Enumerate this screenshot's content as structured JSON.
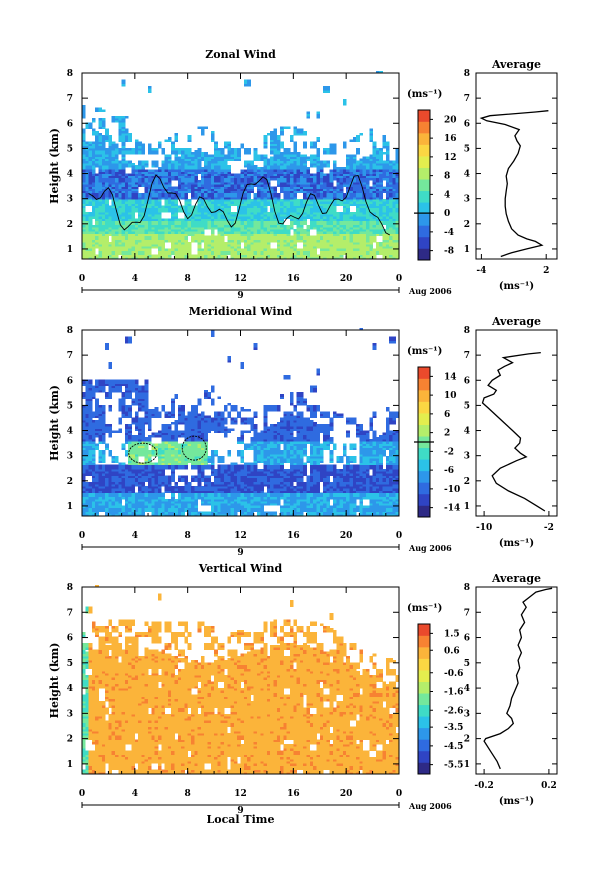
{
  "chart_data": [
    {
      "type": "heatmap",
      "title": "Zonal Wind",
      "ylabel": "Height (km)",
      "xlabel": "",
      "x_ticks": [
        "0",
        "4",
        "8",
        "12",
        "16",
        "20",
        "0"
      ],
      "y_ticks": [
        "1",
        "2",
        "3",
        "4",
        "5",
        "6",
        "7",
        "8"
      ],
      "xlim": [
        0,
        24
      ],
      "ylim": [
        0.6,
        8
      ],
      "day_label": "9",
      "date_label": "Aug 2006",
      "colorbar": {
        "unit": "(ms⁻¹)",
        "labels": [
          "20",
          "16",
          "12",
          "8",
          "4",
          "0",
          "-4",
          "-8"
        ],
        "range": [
          -10,
          22
        ],
        "marker": 0
      },
      "average": {
        "title": "Average",
        "xlabel": "(ms⁻¹)",
        "x_ticks": [
          "-4",
          "2"
        ],
        "xlim": [
          -4.5,
          3
        ],
        "profile": [
          [
            -2.2,
            0.7
          ],
          [
            -1.2,
            0.85
          ],
          [
            0.2,
            1.0
          ],
          [
            1.6,
            1.15
          ],
          [
            1.0,
            1.3
          ],
          [
            0.2,
            1.4
          ],
          [
            -0.6,
            1.55
          ],
          [
            -1.2,
            1.8
          ],
          [
            -1.5,
            2.1
          ],
          [
            -1.7,
            2.4
          ],
          [
            -1.8,
            2.7
          ],
          [
            -1.8,
            3.0
          ],
          [
            -1.7,
            3.3
          ],
          [
            -1.6,
            3.6
          ],
          [
            -1.7,
            3.9
          ],
          [
            -1.5,
            4.2
          ],
          [
            -1.0,
            4.5
          ],
          [
            -0.6,
            4.8
          ],
          [
            -0.4,
            5.1
          ],
          [
            -0.7,
            5.3
          ],
          [
            -0.9,
            5.5
          ],
          [
            -0.5,
            5.75
          ],
          [
            -1.8,
            5.95
          ],
          [
            -3.5,
            6.1
          ],
          [
            -4.0,
            6.2
          ],
          [
            -3.2,
            6.3
          ],
          [
            1.0,
            6.45
          ],
          [
            2.2,
            6.5
          ]
        ]
      }
    },
    {
      "type": "heatmap",
      "title": "Meridional Wind",
      "ylabel": "Height (km)",
      "xlabel": "",
      "x_ticks": [
        "0",
        "4",
        "8",
        "12",
        "16",
        "20",
        "0"
      ],
      "y_ticks": [
        "1",
        "2",
        "3",
        "4",
        "5",
        "6",
        "7",
        "8"
      ],
      "xlim": [
        0,
        24
      ],
      "ylim": [
        0.6,
        8
      ],
      "day_label": "9",
      "date_label": "Aug 2006",
      "colorbar": {
        "unit": "(ms⁻¹)",
        "labels": [
          "14",
          "10",
          "6",
          "2",
          "-2",
          "-6",
          "-10",
          "-14"
        ],
        "range": [
          -16,
          16
        ],
        "marker": 0
      },
      "average": {
        "title": "Average",
        "xlabel": "(ms⁻¹)",
        "x_ticks": [
          "-10",
          "-2"
        ],
        "xlim": [
          -11,
          -1
        ],
        "profile": [
          [
            -2.5,
            0.8
          ],
          [
            -3.5,
            1.0
          ],
          [
            -5.0,
            1.3
          ],
          [
            -7.0,
            1.6
          ],
          [
            -8.5,
            1.9
          ],
          [
            -9.0,
            2.2
          ],
          [
            -8.0,
            2.5
          ],
          [
            -6.0,
            2.8
          ],
          [
            -4.8,
            2.95
          ],
          [
            -5.5,
            3.1
          ],
          [
            -6.2,
            3.3
          ],
          [
            -5.6,
            3.5
          ],
          [
            -5.5,
            3.7
          ],
          [
            -6.5,
            4.0
          ],
          [
            -7.5,
            4.3
          ],
          [
            -8.5,
            4.6
          ],
          [
            -9.5,
            4.9
          ],
          [
            -10.2,
            5.1
          ],
          [
            -10.0,
            5.3
          ],
          [
            -8.8,
            5.45
          ],
          [
            -8.5,
            5.6
          ],
          [
            -9.5,
            5.8
          ],
          [
            -9.0,
            6.0
          ],
          [
            -8.0,
            6.2
          ],
          [
            -8.3,
            6.4
          ],
          [
            -7.5,
            6.55
          ],
          [
            -6.5,
            6.7
          ],
          [
            -7.6,
            6.9
          ],
          [
            -4.5,
            7.05
          ],
          [
            -3.0,
            7.1
          ]
        ]
      }
    },
    {
      "type": "heatmap",
      "title": "Vertical Wind",
      "ylabel": "Height (km)",
      "xlabel": "Local Time",
      "x_ticks": [
        "0",
        "4",
        "8",
        "12",
        "16",
        "20",
        "0"
      ],
      "y_ticks": [
        "1",
        "2",
        "3",
        "4",
        "5",
        "6",
        "7",
        "8"
      ],
      "xlim": [
        0,
        24
      ],
      "ylim": [
        0.6,
        8
      ],
      "day_label": "9",
      "date_label": "Aug 2006",
      "colorbar": {
        "unit": "(ms⁻¹)",
        "labels": [
          "1.5",
          "0.6",
          "-0.6",
          "-1.6",
          "-2.6",
          "-3.5",
          "-4.5",
          "-5.5"
        ],
        "range": [
          -6,
          2
        ]
      },
      "average": {
        "title": "Average",
        "xlabel": "(ms⁻¹)",
        "x_ticks": [
          "-0.2",
          "0.2"
        ],
        "xlim": [
          -0.25,
          0.25
        ],
        "profile": [
          [
            -0.1,
            0.8
          ],
          [
            -0.12,
            1.1
          ],
          [
            -0.16,
            1.5
          ],
          [
            -0.2,
            1.9
          ],
          [
            -0.19,
            2.0
          ],
          [
            -0.1,
            2.2
          ],
          [
            -0.05,
            2.4
          ],
          [
            -0.02,
            2.6
          ],
          [
            -0.03,
            2.8
          ],
          [
            -0.06,
            3.0
          ],
          [
            -0.04,
            3.3
          ],
          [
            -0.03,
            3.6
          ],
          [
            -0.01,
            3.9
          ],
          [
            0.01,
            4.2
          ],
          [
            0.0,
            4.5
          ],
          [
            0.02,
            4.8
          ],
          [
            0.01,
            5.1
          ],
          [
            0.03,
            5.4
          ],
          [
            0.01,
            5.7
          ],
          [
            0.03,
            6.0
          ],
          [
            0.02,
            6.3
          ],
          [
            0.05,
            6.6
          ],
          [
            0.03,
            6.9
          ],
          [
            0.06,
            7.2
          ],
          [
            0.04,
            7.4
          ],
          [
            0.08,
            7.6
          ],
          [
            0.12,
            7.8
          ],
          [
            0.18,
            7.9
          ],
          [
            0.22,
            7.95
          ]
        ]
      }
    }
  ]
}
